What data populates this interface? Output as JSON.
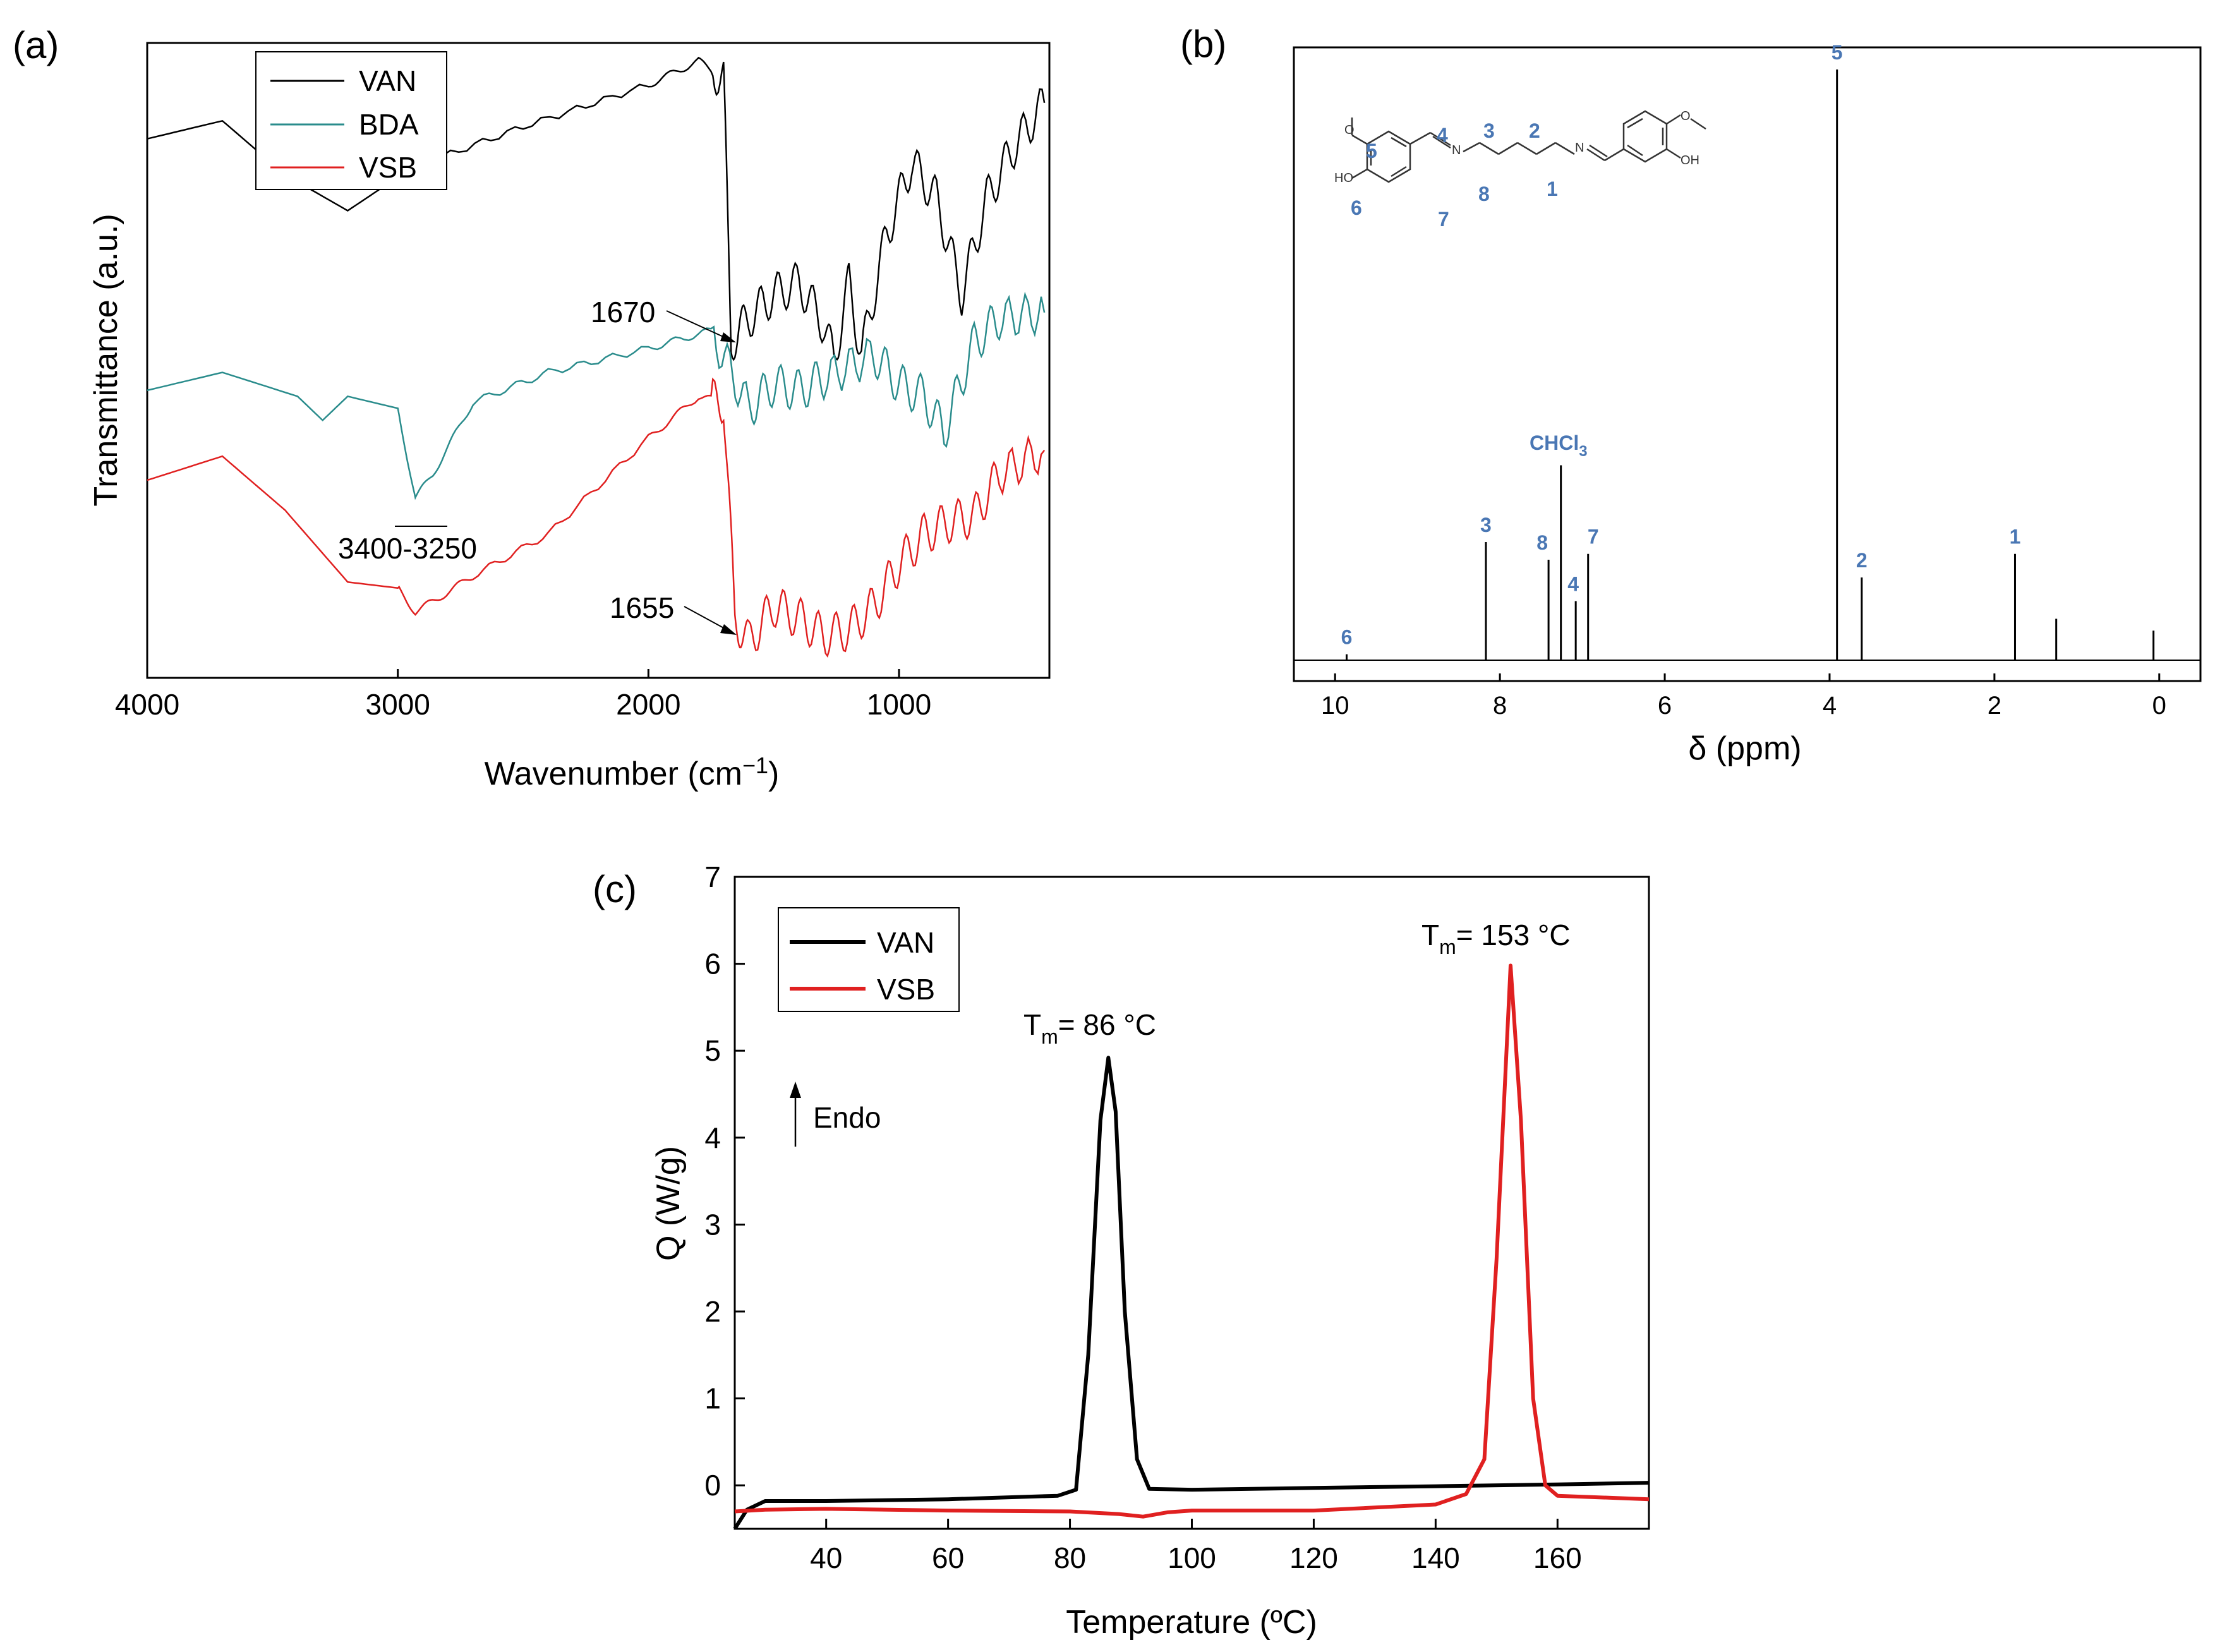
{
  "figure_title": "",
  "chart_data": [
    {
      "panel": "(a)",
      "type": "line",
      "xlabel": "Wavenumber (cm⁻¹)",
      "ylabel": "Transmittance (a.u.)",
      "xlim": [
        4000,
        400
      ],
      "xticks": [
        "4000",
        "3000",
        "2000",
        "1000"
      ],
      "legend_position": "top-left",
      "series": [
        {
          "name": "VAN",
          "color": "#000000",
          "x": [
            4000,
            3700,
            3450,
            3200,
            2950,
            2500,
            2000,
            1800,
            1700,
            1670,
            1600,
            1500,
            1400,
            1300,
            1260,
            1200,
            1150,
            1050,
            950,
            850,
            750,
            650,
            550,
            420
          ],
          "y": [
            0.86,
            0.89,
            0.8,
            0.74,
            0.81,
            0.88,
            0.95,
            0.99,
            0.96,
            0.52,
            0.56,
            0.6,
            0.62,
            0.55,
            0.49,
            0.62,
            0.5,
            0.7,
            0.82,
            0.76,
            0.6,
            0.76,
            0.84,
            0.92
          ]
        },
        {
          "name": "BDA",
          "color": "#2a8c8c",
          "x": [
            4000,
            3700,
            3400,
            3300,
            3200,
            3000,
            2930,
            2860,
            2700,
            2400,
            2000,
            1750,
            1600,
            1500,
            1400,
            1300,
            1100,
            1000,
            900,
            820,
            700,
            600,
            420
          ],
          "y": [
            0.44,
            0.47,
            0.43,
            0.39,
            0.43,
            0.41,
            0.26,
            0.3,
            0.42,
            0.47,
            0.51,
            0.54,
            0.41,
            0.45,
            0.44,
            0.46,
            0.5,
            0.45,
            0.43,
            0.37,
            0.52,
            0.56,
            0.57
          ]
        },
        {
          "name": "VSB",
          "color": "#e02020",
          "x": [
            4000,
            3700,
            3450,
            3200,
            3000,
            2930,
            2850,
            2700,
            2400,
            2000,
            1800,
            1700,
            1655,
            1600,
            1500,
            1400,
            1300,
            1200,
            1100,
            1000,
            900,
            800,
            700,
            600,
            420
          ],
          "y": [
            0.29,
            0.33,
            0.24,
            0.12,
            0.11,
            0.07,
            0.09,
            0.13,
            0.2,
            0.36,
            0.43,
            0.42,
            0.06,
            0.02,
            0.08,
            0.06,
            0.03,
            0.04,
            0.08,
            0.15,
            0.2,
            0.22,
            0.23,
            0.3,
            0.34
          ]
        }
      ],
      "annotations": [
        "1670",
        "3400-3250",
        "1655"
      ]
    },
    {
      "panel": "(b)",
      "type": "line",
      "xlabel": "δ (ppm)",
      "ylabel": "",
      "xlim": [
        10.5,
        -0.5
      ],
      "xticks": [
        "10",
        "8",
        "6",
        "4",
        "2",
        "0"
      ],
      "peaks": [
        {
          "ppm": 9.86,
          "height": 0.01,
          "label": "6"
        },
        {
          "ppm": 8.17,
          "height": 0.2,
          "label": "3"
        },
        {
          "ppm": 7.41,
          "height": 0.17,
          "label": "8"
        },
        {
          "ppm": 7.26,
          "height": 0.33,
          "label": "CHCl3"
        },
        {
          "ppm": 7.08,
          "height": 0.1,
          "label": "4"
        },
        {
          "ppm": 6.93,
          "height": 0.18,
          "label": "7"
        },
        {
          "ppm": 3.91,
          "height": 1.0,
          "label": "5"
        },
        {
          "ppm": 3.61,
          "height": 0.14,
          "label": "2"
        },
        {
          "ppm": 1.75,
          "height": 0.18,
          "label": "1"
        },
        {
          "ppm": 1.25,
          "height": 0.07,
          "label": ""
        },
        {
          "ppm": 0.07,
          "height": 0.05,
          "label": ""
        }
      ],
      "structure_labels": [
        "5",
        "4",
        "3",
        "2",
        "1",
        "6",
        "7",
        "8"
      ],
      "chchl3_label": "CHCl",
      "chchl3_sub": "3"
    },
    {
      "panel": "(c)",
      "type": "line",
      "xlabel": "Temperature (ºC)",
      "ylabel": "Q (W/g)",
      "xlim": [
        25,
        175
      ],
      "ylim": [
        -0.5,
        7
      ],
      "xticks": [
        "40",
        "60",
        "80",
        "100",
        "120",
        "140",
        "160"
      ],
      "yticks": [
        "0",
        "1",
        "2",
        "3",
        "4",
        "5",
        "6",
        "7"
      ],
      "legend_position": "top-left",
      "series": [
        {
          "name": "VAN",
          "color": "#000000",
          "x": [
            25,
            27,
            30,
            40,
            60,
            78,
            81,
            83,
            85,
            86.3,
            87.5,
            89,
            91,
            93,
            100,
            120,
            140,
            160,
            175
          ],
          "y": [
            -0.5,
            -0.28,
            -0.18,
            -0.18,
            -0.16,
            -0.12,
            -0.05,
            1.5,
            4.2,
            4.92,
            4.3,
            2.0,
            0.3,
            -0.04,
            -0.05,
            -0.03,
            -0.01,
            0.01,
            0.03
          ]
        },
        {
          "name": "VSB",
          "color": "#e02020",
          "x": [
            25,
            30,
            40,
            60,
            80,
            88,
            92,
            96,
            100,
            120,
            140,
            145,
            148,
            150,
            152.3,
            154,
            156,
            158,
            160,
            175
          ],
          "y": [
            -0.3,
            -0.28,
            -0.27,
            -0.29,
            -0.3,
            -0.33,
            -0.36,
            -0.31,
            -0.29,
            -0.29,
            -0.22,
            -0.1,
            0.3,
            2.6,
            5.98,
            4.2,
            1.0,
            0.0,
            -0.12,
            -0.16
          ]
        }
      ],
      "annotations": {
        "van_peak": {
          "main": "T",
          "sub": "m",
          "rest": "= 86 °C"
        },
        "vsb_peak": {
          "main": "T",
          "sub": "m",
          "rest": "= 153 °C"
        },
        "endo": "Endo"
      }
    }
  ]
}
